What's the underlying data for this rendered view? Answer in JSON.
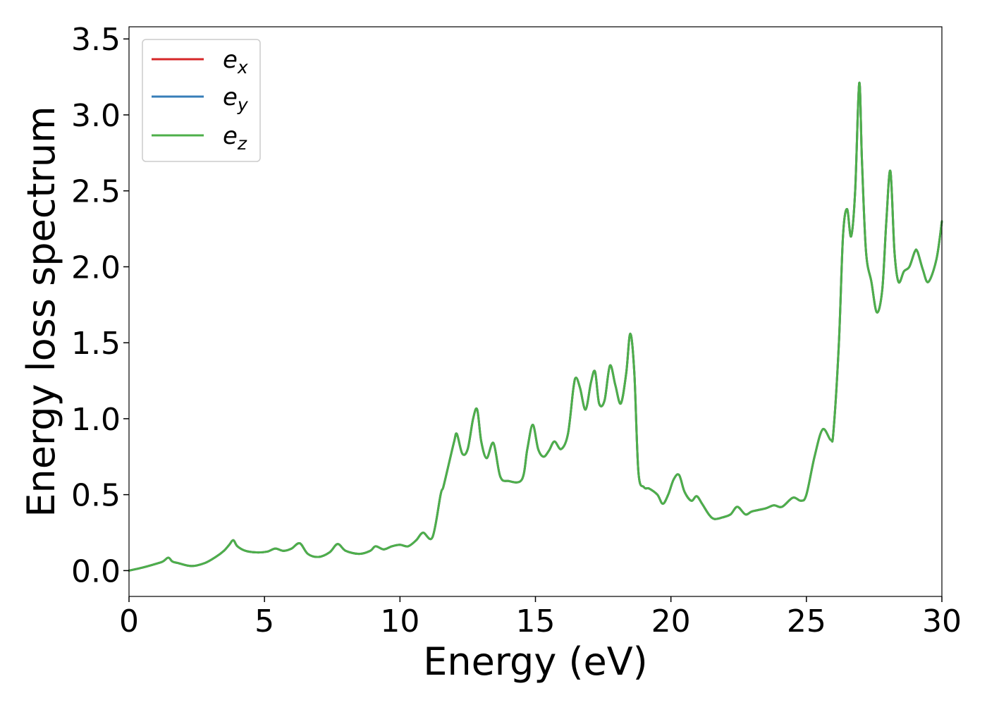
{
  "chart_data": {
    "type": "line",
    "title": "",
    "xlabel": "Energy (eV)",
    "ylabel": "Energy loss spectrum",
    "xlim": [
      0,
      30
    ],
    "ylim": [
      -0.17,
      3.58
    ],
    "xticks": [
      0,
      5,
      10,
      15,
      20,
      25,
      30
    ],
    "xtick_labels": [
      "0",
      "5",
      "10",
      "15",
      "20",
      "25",
      "30"
    ],
    "yticks": [
      0.0,
      0.5,
      1.0,
      1.5,
      2.0,
      2.5,
      3.0,
      3.5
    ],
    "ytick_labels": [
      "0.0",
      "0.5",
      "1.0",
      "1.5",
      "2.0",
      "2.5",
      "3.0",
      "3.5"
    ],
    "grid": false,
    "legend_position": "top-left",
    "x": [
      0.0,
      0.5,
      1.0,
      1.25,
      1.45,
      1.6,
      1.8,
      2.3,
      2.8,
      3.2,
      3.5,
      3.7,
      3.85,
      4.0,
      4.3,
      4.7,
      5.1,
      5.4,
      5.7,
      6.0,
      6.3,
      6.6,
      7.0,
      7.4,
      7.7,
      8.0,
      8.5,
      8.9,
      9.1,
      9.4,
      9.7,
      10.0,
      10.3,
      10.6,
      10.85,
      11.2,
      11.5,
      11.6,
      11.8,
      12.0,
      12.1,
      12.3,
      12.5,
      12.7,
      12.85,
      13.0,
      13.2,
      13.45,
      13.7,
      14.0,
      14.5,
      14.7,
      14.9,
      15.1,
      15.3,
      15.5,
      15.7,
      15.95,
      16.2,
      16.4,
      16.5,
      16.65,
      16.85,
      17.05,
      17.2,
      17.35,
      17.55,
      17.75,
      17.95,
      18.15,
      18.35,
      18.5,
      18.65,
      18.8,
      19.0,
      19.2,
      19.5,
      19.7,
      19.9,
      20.1,
      20.3,
      20.5,
      20.75,
      20.95,
      21.15,
      21.4,
      21.6,
      21.9,
      22.2,
      22.45,
      22.75,
      23.0,
      23.5,
      23.8,
      24.1,
      24.5,
      24.8,
      25.0,
      25.3,
      25.6,
      25.9,
      26.0,
      26.2,
      26.35,
      26.5,
      26.65,
      26.8,
      26.95,
      27.05,
      27.2,
      27.4,
      27.6,
      27.8,
      27.95,
      28.1,
      28.25,
      28.4,
      28.6,
      28.8,
      29.0,
      29.1,
      29.3,
      29.5,
      29.8,
      30.0
    ],
    "series": [
      {
        "name": "e_x",
        "color": "#d62728",
        "values": [
          0.0,
          0.02,
          0.045,
          0.06,
          0.085,
          0.06,
          0.05,
          0.03,
          0.05,
          0.09,
          0.13,
          0.17,
          0.2,
          0.16,
          0.13,
          0.12,
          0.125,
          0.145,
          0.13,
          0.145,
          0.18,
          0.11,
          0.09,
          0.12,
          0.175,
          0.13,
          0.11,
          0.13,
          0.16,
          0.14,
          0.16,
          0.17,
          0.16,
          0.2,
          0.25,
          0.22,
          0.5,
          0.55,
          0.7,
          0.85,
          0.9,
          0.77,
          0.8,
          1.0,
          1.06,
          0.85,
          0.74,
          0.84,
          0.62,
          0.59,
          0.6,
          0.8,
          0.96,
          0.8,
          0.75,
          0.79,
          0.85,
          0.8,
          0.9,
          1.2,
          1.27,
          1.2,
          1.06,
          1.24,
          1.31,
          1.1,
          1.12,
          1.35,
          1.22,
          1.1,
          1.3,
          1.56,
          1.3,
          0.65,
          0.55,
          0.54,
          0.5,
          0.44,
          0.5,
          0.6,
          0.63,
          0.52,
          0.46,
          0.49,
          0.44,
          0.37,
          0.34,
          0.35,
          0.37,
          0.42,
          0.37,
          0.39,
          0.41,
          0.43,
          0.42,
          0.48,
          0.46,
          0.5,
          0.75,
          0.93,
          0.86,
          0.92,
          1.5,
          2.2,
          2.38,
          2.2,
          2.5,
          3.21,
          2.7,
          2.1,
          1.9,
          1.7,
          1.85,
          2.3,
          2.63,
          2.1,
          1.9,
          1.97,
          2.0,
          2.1,
          2.1,
          1.98,
          1.9,
          2.05,
          2.3
        ]
      },
      {
        "name": "e_y",
        "color": "#377eb8",
        "values": [
          0.0,
          0.02,
          0.045,
          0.06,
          0.085,
          0.06,
          0.05,
          0.03,
          0.05,
          0.09,
          0.13,
          0.17,
          0.2,
          0.16,
          0.13,
          0.12,
          0.125,
          0.145,
          0.13,
          0.145,
          0.18,
          0.11,
          0.09,
          0.12,
          0.175,
          0.13,
          0.11,
          0.13,
          0.16,
          0.14,
          0.16,
          0.17,
          0.16,
          0.2,
          0.25,
          0.22,
          0.5,
          0.55,
          0.7,
          0.85,
          0.9,
          0.77,
          0.8,
          1.0,
          1.06,
          0.85,
          0.74,
          0.84,
          0.62,
          0.59,
          0.6,
          0.8,
          0.96,
          0.8,
          0.75,
          0.79,
          0.85,
          0.8,
          0.9,
          1.2,
          1.27,
          1.2,
          1.06,
          1.24,
          1.31,
          1.1,
          1.12,
          1.35,
          1.22,
          1.1,
          1.3,
          1.56,
          1.3,
          0.65,
          0.55,
          0.54,
          0.5,
          0.44,
          0.5,
          0.6,
          0.63,
          0.52,
          0.46,
          0.49,
          0.44,
          0.37,
          0.34,
          0.35,
          0.37,
          0.42,
          0.37,
          0.39,
          0.41,
          0.43,
          0.42,
          0.48,
          0.46,
          0.5,
          0.75,
          0.93,
          0.86,
          0.92,
          1.5,
          2.2,
          2.38,
          2.2,
          2.5,
          3.21,
          2.7,
          2.1,
          1.9,
          1.7,
          1.85,
          2.3,
          2.63,
          2.1,
          1.9,
          1.97,
          2.0,
          2.1,
          2.1,
          1.98,
          1.9,
          2.05,
          2.3
        ]
      },
      {
        "name": "e_z",
        "color": "#4daf4a",
        "values": [
          0.0,
          0.02,
          0.045,
          0.06,
          0.085,
          0.06,
          0.05,
          0.03,
          0.05,
          0.09,
          0.13,
          0.17,
          0.2,
          0.16,
          0.13,
          0.12,
          0.125,
          0.145,
          0.13,
          0.145,
          0.18,
          0.11,
          0.09,
          0.12,
          0.175,
          0.13,
          0.11,
          0.13,
          0.16,
          0.14,
          0.16,
          0.17,
          0.16,
          0.2,
          0.25,
          0.22,
          0.5,
          0.55,
          0.7,
          0.85,
          0.9,
          0.77,
          0.8,
          1.0,
          1.06,
          0.85,
          0.74,
          0.84,
          0.62,
          0.59,
          0.6,
          0.8,
          0.96,
          0.8,
          0.75,
          0.79,
          0.85,
          0.8,
          0.9,
          1.2,
          1.27,
          1.2,
          1.06,
          1.24,
          1.31,
          1.1,
          1.12,
          1.35,
          1.22,
          1.1,
          1.3,
          1.56,
          1.3,
          0.65,
          0.55,
          0.54,
          0.5,
          0.44,
          0.5,
          0.6,
          0.63,
          0.52,
          0.46,
          0.49,
          0.44,
          0.37,
          0.34,
          0.35,
          0.37,
          0.42,
          0.37,
          0.39,
          0.41,
          0.43,
          0.42,
          0.48,
          0.46,
          0.5,
          0.75,
          0.93,
          0.86,
          0.92,
          1.5,
          2.2,
          2.38,
          2.2,
          2.5,
          3.21,
          2.7,
          2.1,
          1.9,
          1.7,
          1.85,
          2.3,
          2.63,
          2.1,
          1.9,
          1.97,
          2.0,
          2.1,
          2.1,
          1.98,
          1.9,
          2.05,
          2.3
        ]
      }
    ],
    "legend": [
      {
        "base": "e",
        "sub": "x",
        "color": "#d62728"
      },
      {
        "base": "e",
        "sub": "y",
        "color": "#377eb8"
      },
      {
        "base": "e",
        "sub": "z",
        "color": "#4daf4a"
      }
    ]
  }
}
